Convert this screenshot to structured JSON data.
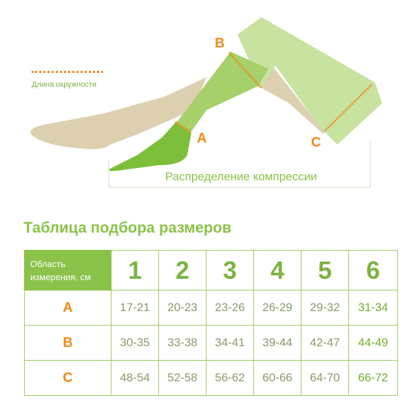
{
  "legend": {
    "label": "Длина окружности"
  },
  "markers": {
    "a": "A",
    "b": "B",
    "c": "C"
  },
  "diagram": {
    "caption": "Распределение компрессии"
  },
  "colors": {
    "accent_green": "#8bc34a",
    "accent_orange": "#f08a1c",
    "skin": "#ddd0b0",
    "stocking_light": "#c8e29f",
    "stocking_mid": "#a6d06a",
    "stocking_dark": "#7dbf3a"
  },
  "table": {
    "title": "Таблица подбора размеров",
    "header_label": "Область измерения, см",
    "sizes": [
      "1",
      "2",
      "3",
      "4",
      "5",
      "6"
    ],
    "rows": [
      {
        "label": "A",
        "values": [
          "17-21",
          "20-23",
          "23-26",
          "26-29",
          "29-32",
          "31-34"
        ]
      },
      {
        "label": "B",
        "values": [
          "30-35",
          "33-38",
          "34-41",
          "39-44",
          "42-47",
          "44-49"
        ]
      },
      {
        "label": "C",
        "values": [
          "48-54",
          "52-58",
          "56-62",
          "60-66",
          "64-70",
          "66-72"
        ]
      }
    ]
  }
}
